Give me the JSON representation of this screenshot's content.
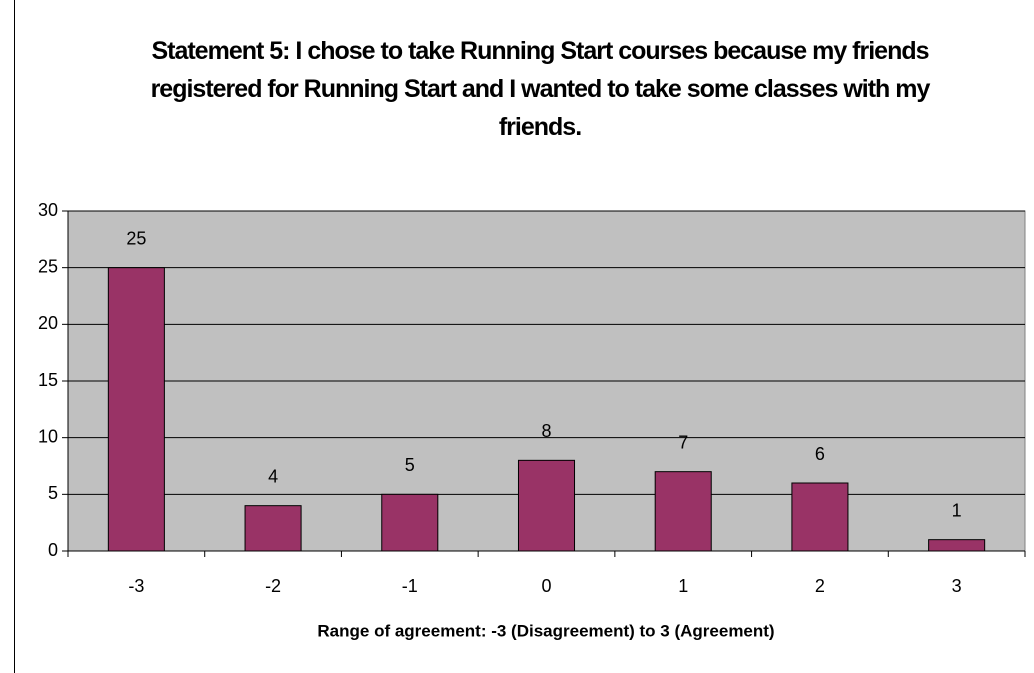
{
  "chart_data": {
    "type": "bar",
    "title": "Statement 5:  I chose to take Running Start courses because my friends registered for Running Start and I wanted to take some classes with my friends.",
    "x_label": "Range of agreement:  -3 (Disagreement) to 3 (Agreement)",
    "categories": [
      "-3",
      "-2",
      "-1",
      "0",
      "1",
      "2",
      "3"
    ],
    "values": [
      25,
      4,
      5,
      8,
      7,
      6,
      1
    ],
    "color": "#993366",
    "ylim": [
      0,
      30
    ],
    "yticks": [
      0,
      5,
      10,
      15,
      20,
      25,
      30
    ],
    "grid": true
  }
}
